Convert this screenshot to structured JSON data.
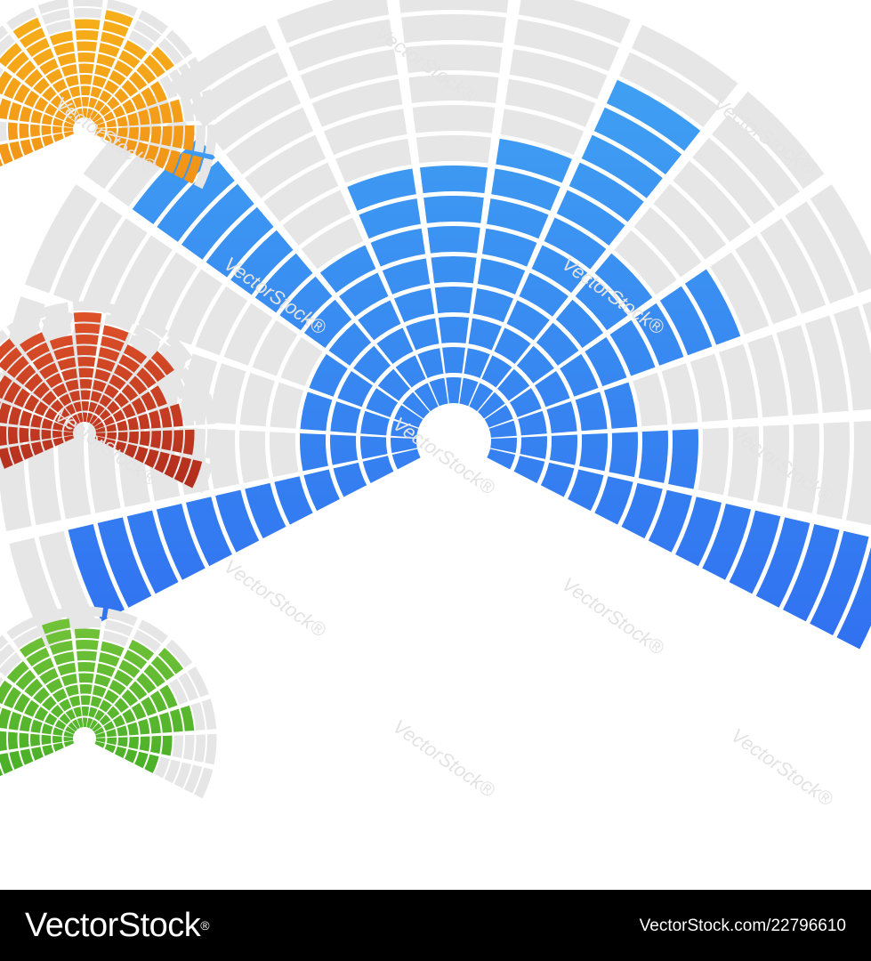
{
  "image": {
    "description_free": true,
    "background_color": "#ffffff"
  },
  "graphics": {
    "placeholder_color": "#e6e6e6",
    "fans": [
      {
        "name": "large-blue-fan",
        "color_start": "#42a8f2",
        "color_end": "#2a5cf0",
        "levels": [
          12,
          4,
          4,
          4,
          12,
          6,
          8,
          8,
          9,
          12,
          7,
          9,
          5,
          7,
          14
        ]
      },
      {
        "name": "orange-fan",
        "color_start": "#f7b21a",
        "color_end": "#ef8516",
        "levels": [
          8,
          6,
          7,
          8,
          9,
          10,
          8,
          9,
          10,
          8,
          9,
          7,
          8,
          9,
          10
        ]
      },
      {
        "name": "red-fan",
        "color_start": "#e2552a",
        "color_end": "#9b1b17",
        "levels": [
          7,
          8,
          9,
          8,
          10,
          9,
          8,
          10,
          9,
          8,
          9,
          7,
          8,
          9,
          10
        ]
      },
      {
        "name": "green-fan",
        "color_start": "#76c43b",
        "color_end": "#2fa41a",
        "levels": [
          8,
          7,
          9,
          8,
          8,
          9,
          10,
          9,
          8,
          9,
          10,
          8,
          9,
          7,
          6
        ]
      }
    ]
  },
  "watermark": {
    "text": "VectorStock",
    "registered": "®"
  },
  "footer": {
    "logo_text": "VectorStock",
    "registered": "®",
    "image_code": "VectorStock.com/22796610"
  }
}
